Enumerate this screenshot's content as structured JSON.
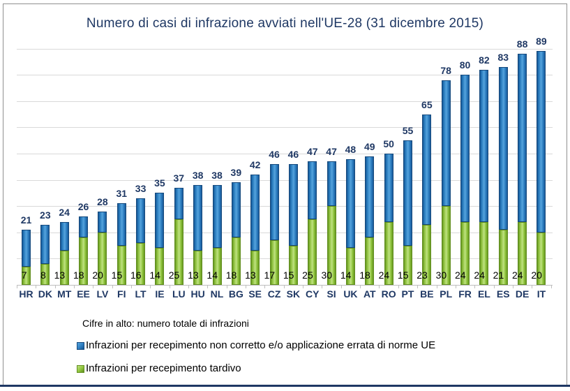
{
  "chart_data": {
    "type": "bar",
    "stacked": true,
    "title": "Numero di casi di infrazione avviati nell'UE-28 (31 dicembre 2015)",
    "note": "Cifre in alto: numero totale di infrazioni",
    "categories": [
      "HR",
      "DK",
      "MT",
      "EE",
      "LV",
      "FI",
      "LT",
      "IE",
      "LU",
      "HU",
      "NL",
      "BG",
      "SE",
      "CZ",
      "SK",
      "CY",
      "SI",
      "UK",
      "AT",
      "RO",
      "PT",
      "BE",
      "PL",
      "FR",
      "EL",
      "ES",
      "DE",
      "IT"
    ],
    "series": [
      {
        "name": "Infrazioni per recepimento non corretto e/o applicazione errata di norme UE",
        "color": "#2e7fc2",
        "values": [
          14,
          15,
          11,
          8,
          8,
          16,
          17,
          21,
          12,
          25,
          24,
          21,
          29,
          29,
          31,
          22,
          17,
          34,
          31,
          26,
          40,
          42,
          48,
          56,
          58,
          62,
          64,
          69
        ]
      },
      {
        "name": "Infrazioni per recepimento tardivo",
        "color": "#8fc43c",
        "values": [
          7,
          8,
          13,
          18,
          20,
          15,
          16,
          14,
          25,
          13,
          14,
          18,
          13,
          17,
          15,
          25,
          30,
          14,
          18,
          24,
          15,
          23,
          30,
          24,
          24,
          21,
          24,
          20
        ]
      }
    ],
    "totals": [
      21,
      23,
      24,
      26,
      28,
      31,
      33,
      35,
      37,
      38,
      38,
      39,
      42,
      46,
      46,
      47,
      47,
      48,
      49,
      50,
      55,
      65,
      78,
      80,
      82,
      83,
      88,
      89
    ],
    "ylim": [
      0,
      90
    ],
    "gridline_step": 10,
    "grid": true,
    "y_axis_labels": false,
    "legend_position": "bottom-left",
    "colors": {
      "title_text": "#1f3864",
      "axis_label_text": "#1f3864",
      "total_label_text": "#1f3864",
      "late_label_text": "#000000",
      "gridline": "#d9d9d9"
    }
  }
}
